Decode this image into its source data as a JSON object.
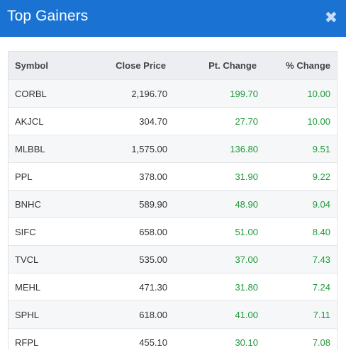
{
  "modal": {
    "title": "Top Gainers",
    "close_glyph": "✖",
    "close_icon": "close-icon"
  },
  "table": {
    "headers": [
      "Symbol",
      "Close Price",
      "Pt. Change",
      "% Change"
    ],
    "rows": [
      {
        "symbol": "CORBL",
        "close": "2,196.70",
        "pt_change": "199.70",
        "pct_change": "10.00"
      },
      {
        "symbol": "AKJCL",
        "close": "304.70",
        "pt_change": "27.70",
        "pct_change": "10.00"
      },
      {
        "symbol": "MLBBL",
        "close": "1,575.00",
        "pt_change": "136.80",
        "pct_change": "9.51"
      },
      {
        "symbol": "PPL",
        "close": "378.00",
        "pt_change": "31.90",
        "pct_change": "9.22"
      },
      {
        "symbol": "BNHC",
        "close": "589.90",
        "pt_change": "48.90",
        "pct_change": "9.04"
      },
      {
        "symbol": "SIFC",
        "close": "658.00",
        "pt_change": "51.00",
        "pct_change": "8.40"
      },
      {
        "symbol": "TVCL",
        "close": "535.00",
        "pt_change": "37.00",
        "pct_change": "7.43"
      },
      {
        "symbol": "MEHL",
        "close": "471.30",
        "pt_change": "31.80",
        "pct_change": "7.24"
      },
      {
        "symbol": "SPHL",
        "close": "618.00",
        "pt_change": "41.00",
        "pct_change": "7.11"
      },
      {
        "symbol": "RFPL",
        "close": "455.10",
        "pt_change": "30.10",
        "pct_change": "7.08"
      }
    ]
  },
  "colors": {
    "header_bg": "#1a73d3",
    "gain": "#1f9a3a",
    "table_head_bg": "#eceef1"
  }
}
